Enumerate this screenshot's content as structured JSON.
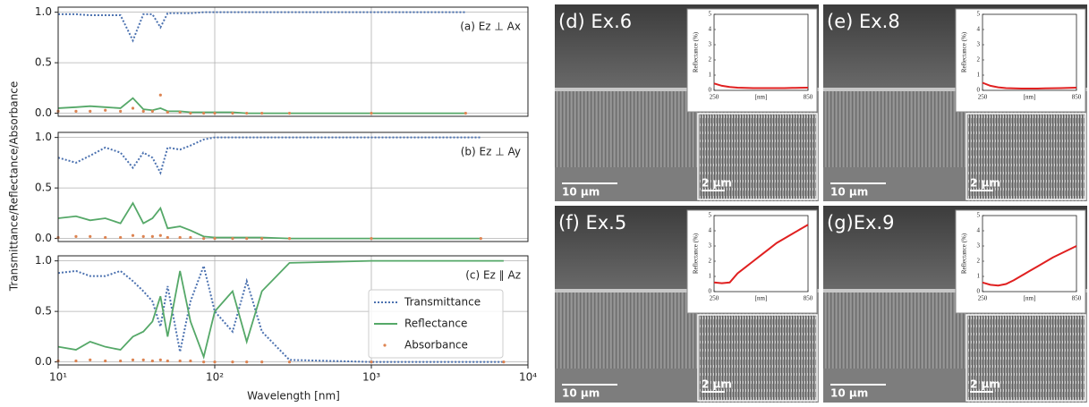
{
  "xlabel": "Wavelength [nm]",
  "ylabel": "Transmittance/Reflectance/Absorbance",
  "chart_data": [
    {
      "type": "line",
      "panel_label": "(a) Ez ⊥ Ax",
      "log_x": true,
      "grid": true,
      "x": [
        10,
        13,
        16,
        20,
        25,
        30,
        35,
        40,
        45,
        50,
        60,
        70,
        85,
        100,
        130,
        160,
        200,
        300,
        1000,
        4000
      ],
      "series": [
        {
          "color": "#4c72b0",
          "style": "dotted",
          "values": [
            0.98,
            0.98,
            0.97,
            0.97,
            0.97,
            0.72,
            0.98,
            0.98,
            0.85,
            0.99,
            0.99,
            0.99,
            1.0,
            1.0,
            1.0,
            1.0,
            1.0,
            1.0,
            1.0,
            1.0
          ]
        },
        {
          "color": "#55a868",
          "style": "solid",
          "values": [
            0.05,
            0.06,
            0.07,
            0.06,
            0.05,
            0.15,
            0.04,
            0.03,
            0.05,
            0.02,
            0.02,
            0.01,
            0.01,
            0.01,
            0.01,
            0.0,
            0.0,
            0.0,
            0.0,
            0.0
          ]
        },
        {
          "color": "#dd8452",
          "style": "points",
          "values": [
            0.02,
            0.02,
            0.02,
            0.03,
            0.02,
            0.05,
            0.02,
            0.02,
            0.18,
            0.01,
            0.01,
            0.0,
            0.0,
            0.0,
            0.0,
            0.0,
            0.0,
            0.0,
            0.0,
            0.0
          ]
        }
      ],
      "xlim": [
        10,
        10000
      ],
      "xticks": [
        10,
        100,
        1000,
        10000
      ],
      "ylim": [
        -0.03,
        1.05
      ],
      "yticks": [
        {
          "value": 0,
          "label": "0.0"
        },
        {
          "value": 0.5,
          "label": "0.5"
        },
        {
          "value": 1,
          "label": "1.0"
        }
      ]
    },
    {
      "type": "line",
      "panel_label": "(b) Ez ⊥ Ay",
      "log_x": true,
      "grid": true,
      "x": [
        10,
        13,
        16,
        20,
        25,
        30,
        35,
        40,
        45,
        50,
        60,
        70,
        85,
        100,
        130,
        160,
        200,
        300,
        1000,
        5000
      ],
      "series": [
        {
          "color": "#4c72b0",
          "style": "dotted",
          "values": [
            0.8,
            0.75,
            0.82,
            0.9,
            0.85,
            0.7,
            0.85,
            0.8,
            0.65,
            0.9,
            0.88,
            0.92,
            0.98,
            1.0,
            1.0,
            1.0,
            1.0,
            1.0,
            1.0,
            1.0
          ]
        },
        {
          "color": "#55a868",
          "style": "solid",
          "values": [
            0.2,
            0.22,
            0.18,
            0.2,
            0.15,
            0.35,
            0.15,
            0.2,
            0.3,
            0.1,
            0.12,
            0.08,
            0.02,
            0.01,
            0.01,
            0.01,
            0.01,
            0.0,
            0.0,
            0.0
          ]
        },
        {
          "color": "#dd8452",
          "style": "points",
          "values": [
            0.01,
            0.02,
            0.02,
            0.01,
            0.01,
            0.03,
            0.02,
            0.02,
            0.03,
            0.01,
            0.01,
            0.01,
            0.0,
            0.0,
            0.0,
            0.0,
            0.0,
            0.0,
            0.0,
            0.0
          ]
        }
      ],
      "xlim": [
        10,
        10000
      ],
      "xticks": [
        10,
        100,
        1000,
        10000
      ],
      "ylim": [
        -0.03,
        1.05
      ],
      "yticks": [
        {
          "value": 0,
          "label": "0.0"
        },
        {
          "value": 0.5,
          "label": "0.5"
        },
        {
          "value": 1,
          "label": "1.0"
        }
      ]
    },
    {
      "type": "line",
      "panel_label": "(c) Ez ∥ Az",
      "log_x": true,
      "grid": true,
      "legend": "lower right",
      "x": [
        10,
        13,
        16,
        20,
        25,
        30,
        35,
        40,
        45,
        50,
        60,
        70,
        85,
        100,
        130,
        160,
        200,
        300,
        1000,
        7000
      ],
      "series": [
        {
          "name": "Transmittance",
          "color": "#4c72b0",
          "style": "dotted",
          "values": [
            0.88,
            0.9,
            0.85,
            0.85,
            0.9,
            0.8,
            0.7,
            0.6,
            0.35,
            0.75,
            0.1,
            0.6,
            0.95,
            0.5,
            0.3,
            0.8,
            0.3,
            0.02,
            0.0,
            0.0
          ]
        },
        {
          "name": "Reflectance",
          "color": "#55a868",
          "style": "solid",
          "values": [
            0.15,
            0.12,
            0.2,
            0.15,
            0.12,
            0.25,
            0.3,
            0.4,
            0.65,
            0.25,
            0.9,
            0.4,
            0.05,
            0.5,
            0.7,
            0.2,
            0.7,
            0.98,
            1.0,
            1.0
          ]
        },
        {
          "name": "Absorbance",
          "color": "#dd8452",
          "style": "points",
          "values": [
            0.01,
            0.01,
            0.02,
            0.01,
            0.01,
            0.02,
            0.02,
            0.01,
            0.02,
            0.01,
            0.01,
            0.01,
            0.0,
            0.0,
            0.0,
            0.0,
            0.0,
            0.0,
            0.0,
            0.0
          ]
        }
      ],
      "xlim": [
        10,
        10000
      ],
      "xticks": [
        {
          "value": 10,
          "label": "10¹"
        },
        {
          "value": 100,
          "label": "10²"
        },
        {
          "value": 1000,
          "label": "10³"
        },
        {
          "value": 10000,
          "label": "10⁴"
        }
      ],
      "ylim": [
        -0.03,
        1.05
      ],
      "yticks": [
        {
          "value": 0,
          "label": "0.0"
        },
        {
          "value": 0.5,
          "label": "0.5"
        },
        {
          "value": 1,
          "label": "1.0"
        }
      ]
    },
    {
      "type": "line",
      "image_label": "(d) Ex.6",
      "scale_bar": "10 µm",
      "inset_scale_bar": "2 µm",
      "ylabel": "Reflectance (%)",
      "xlabel": "[nm]",
      "color": "#e02020",
      "x": [
        250,
        300,
        350,
        400,
        450,
        500,
        550,
        600,
        650,
        700,
        750,
        800,
        850
      ],
      "values": [
        0.45,
        0.3,
        0.22,
        0.18,
        0.16,
        0.15,
        0.15,
        0.15,
        0.15,
        0.15,
        0.16,
        0.17,
        0.18
      ],
      "xlim": [
        250,
        850
      ],
      "xticks": [
        250,
        850
      ],
      "ylim": [
        0,
        5
      ],
      "yticks": [
        0,
        1,
        2,
        3,
        4,
        5
      ]
    },
    {
      "type": "line",
      "image_label": "(e) Ex.8",
      "scale_bar": "10 µm",
      "inset_scale_bar": "2 µm",
      "ylabel": "Reflectance (%)",
      "xlabel": "[nm]",
      "color": "#e02020",
      "x": [
        250,
        300,
        350,
        400,
        450,
        500,
        550,
        600,
        650,
        700,
        750,
        800,
        850
      ],
      "values": [
        0.5,
        0.3,
        0.2,
        0.15,
        0.13,
        0.12,
        0.12,
        0.12,
        0.13,
        0.14,
        0.15,
        0.16,
        0.18
      ],
      "xlim": [
        250,
        850
      ],
      "xticks": [
        250,
        850
      ],
      "ylim": [
        0,
        5
      ],
      "yticks": [
        0,
        1,
        2,
        3,
        4,
        5
      ]
    },
    {
      "type": "line",
      "image_label": "(f)  Ex.5",
      "scale_bar": "10 µm",
      "inset_scale_bar": "2 µm",
      "ylabel": "Reflectance (%)",
      "xlabel": "[nm]",
      "color": "#e02020",
      "x": [
        250,
        300,
        350,
        400,
        450,
        500,
        550,
        600,
        650,
        700,
        750,
        800,
        850
      ],
      "values": [
        0.6,
        0.55,
        0.6,
        1.2,
        1.6,
        2.0,
        2.4,
        2.8,
        3.2,
        3.5,
        3.8,
        4.1,
        4.4
      ],
      "xlim": [
        250,
        850
      ],
      "xticks": [
        250,
        850
      ],
      "ylim": [
        0,
        5
      ],
      "yticks": [
        0,
        1,
        2,
        3,
        4,
        5
      ]
    },
    {
      "type": "line",
      "image_label": "(g)Ex.9",
      "scale_bar": "10 µm",
      "inset_scale_bar": "2 µm",
      "ylabel": "Reflectance (%)",
      "xlabel": "[nm]",
      "color": "#e02020",
      "x": [
        250,
        300,
        350,
        400,
        450,
        500,
        550,
        600,
        650,
        700,
        750,
        800,
        850
      ],
      "values": [
        0.6,
        0.45,
        0.4,
        0.5,
        0.75,
        1.05,
        1.35,
        1.65,
        1.95,
        2.25,
        2.5,
        2.75,
        3.0
      ],
      "xlim": [
        250,
        850
      ],
      "xticks": [
        250,
        850
      ],
      "ylim": [
        0,
        5
      ],
      "yticks": [
        0,
        1,
        2,
        3,
        4,
        5
      ]
    }
  ]
}
